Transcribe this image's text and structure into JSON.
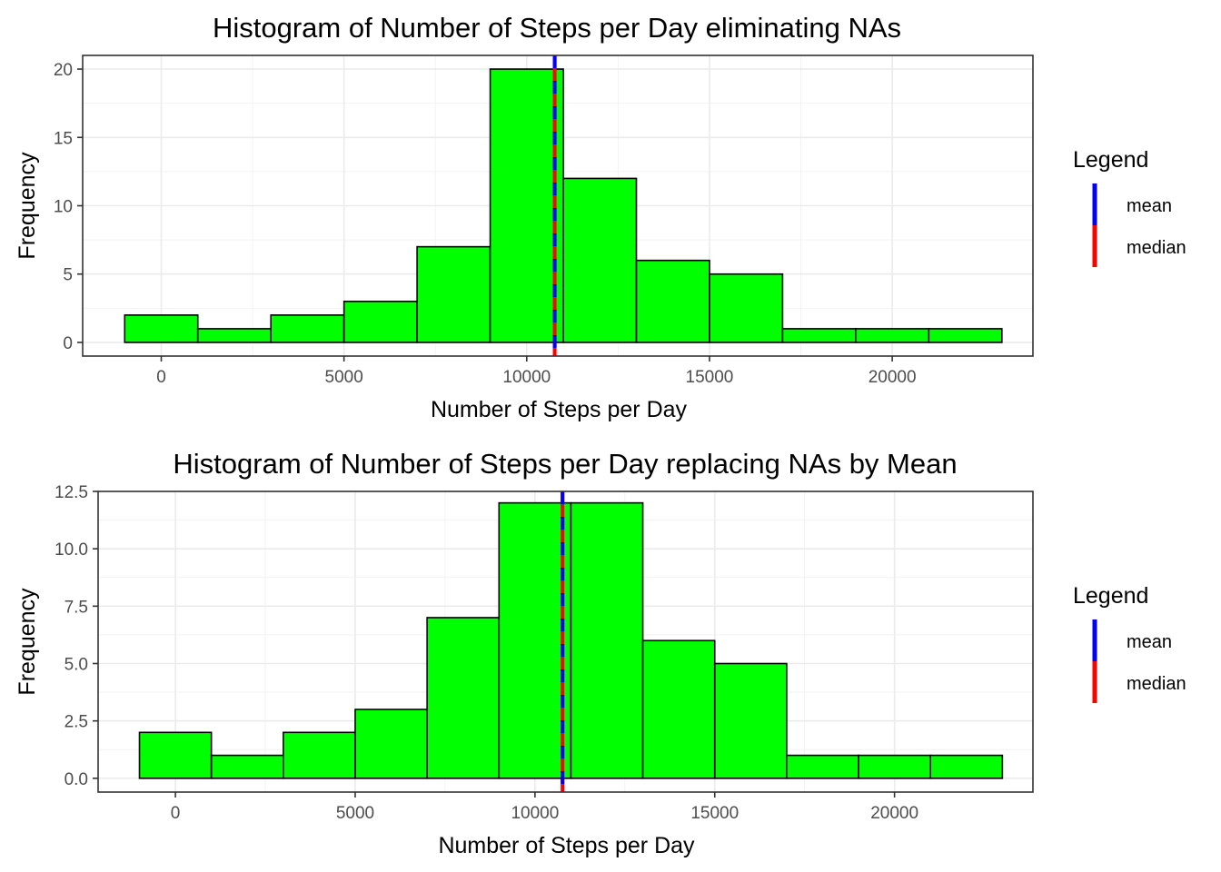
{
  "chart_data": [
    {
      "type": "bar",
      "title": "Histogram of Number of Steps per Day eliminating NAs",
      "xlabel": "Number of Steps per Day",
      "ylabel": "Frequency",
      "bins": [
        {
          "x0": -1000,
          "x1": 1000,
          "count": 2
        },
        {
          "x0": 1000,
          "x1": 3000,
          "count": 1
        },
        {
          "x0": 3000,
          "x1": 5000,
          "count": 2
        },
        {
          "x0": 5000,
          "x1": 7000,
          "count": 3
        },
        {
          "x0": 7000,
          "x1": 9000,
          "count": 7
        },
        {
          "x0": 9000,
          "x1": 11000,
          "count": 20
        },
        {
          "x0": 11000,
          "x1": 13000,
          "count": 12
        },
        {
          "x0": 13000,
          "x1": 15000,
          "count": 6
        },
        {
          "x0": 15000,
          "x1": 17000,
          "count": 5
        },
        {
          "x0": 17000,
          "x1": 19000,
          "count": 1
        },
        {
          "x0": 19000,
          "x1": 21000,
          "count": 1
        },
        {
          "x0": 21000,
          "x1": 23000,
          "count": 1
        }
      ],
      "xlim": [
        -2150,
        23850
      ],
      "ylim": [
        -1,
        21
      ],
      "x_ticks": [
        0,
        5000,
        10000,
        15000,
        20000
      ],
      "x_tick_labels": [
        "0",
        "5000",
        "10000",
        "15000",
        "20000"
      ],
      "y_ticks": [
        0,
        5,
        10,
        15,
        20
      ],
      "y_tick_labels": [
        "0",
        "5",
        "10",
        "15",
        "20"
      ],
      "mean": 10766,
      "median": 10765,
      "bar_color": "#00ff00",
      "grid": true,
      "legend": {
        "title": "Legend",
        "position": "right",
        "items": [
          {
            "label": "mean",
            "color": "#0000ff"
          },
          {
            "label": "median",
            "color": "#ff0000"
          }
        ]
      }
    },
    {
      "type": "bar",
      "title": "Histogram of Number of Steps per Day replacing NAs by Mean",
      "xlabel": "Number of Steps per Day",
      "ylabel": "Frequency",
      "bins": [
        {
          "x0": -1000,
          "x1": 1000,
          "count": 2
        },
        {
          "x0": 1000,
          "x1": 3000,
          "count": 1
        },
        {
          "x0": 3000,
          "x1": 5000,
          "count": 2
        },
        {
          "x0": 5000,
          "x1": 7000,
          "count": 3
        },
        {
          "x0": 7000,
          "x1": 9000,
          "count": 7
        },
        {
          "x0": 9000,
          "x1": 11000,
          "count": 12
        },
        {
          "x0": 11000,
          "x1": 13000,
          "count": 12
        },
        {
          "x0": 13000,
          "x1": 15000,
          "count": 6
        },
        {
          "x0": 15000,
          "x1": 17000,
          "count": 5
        },
        {
          "x0": 17000,
          "x1": 19000,
          "count": 1
        },
        {
          "x0": 19000,
          "x1": 21000,
          "count": 1
        },
        {
          "x0": 21000,
          "x1": 23000,
          "count": 1
        }
      ],
      "xlim": [
        -2150,
        23850
      ],
      "ylim": [
        -0.6,
        12.5
      ],
      "x_ticks": [
        0,
        5000,
        10000,
        15000,
        20000
      ],
      "x_tick_labels": [
        "0",
        "5000",
        "10000",
        "15000",
        "20000"
      ],
      "y_ticks": [
        0,
        2.5,
        5,
        7.5,
        10,
        12.5
      ],
      "y_tick_labels": [
        "0.0",
        "2.5",
        "5.0",
        "7.5",
        "10.0",
        "12.5"
      ],
      "mean": 10766,
      "median": 10766,
      "bar_color": "#00ff00",
      "grid": true,
      "legend": {
        "title": "Legend",
        "position": "right",
        "items": [
          {
            "label": "mean",
            "color": "#0000ff"
          },
          {
            "label": "median",
            "color": "#ff0000"
          }
        ]
      }
    }
  ]
}
